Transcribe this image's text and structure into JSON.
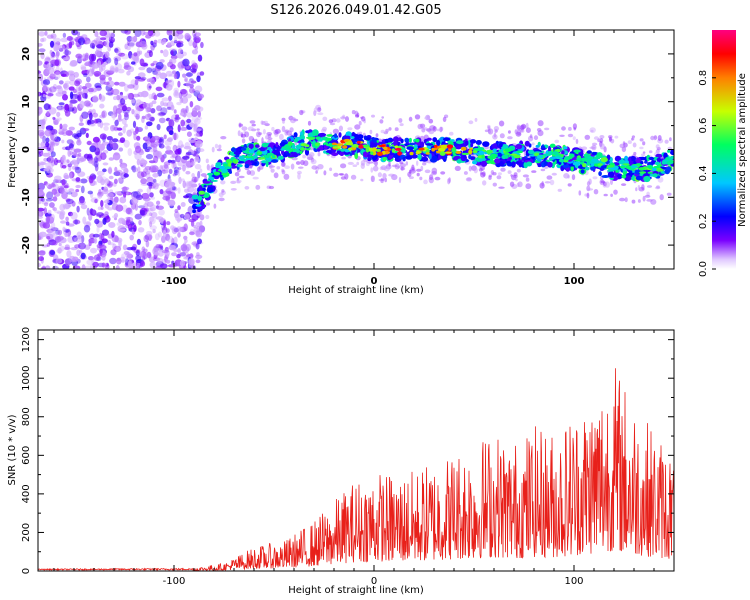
{
  "title": "S126.2026.049.01.42.G05",
  "colors": {
    "snr_line": "#e8201a",
    "spectrogram_low": "#e7d3fb",
    "spectrogram_mid": "#7a00ff",
    "colorbar": [
      "#ffffff",
      "#e0c8ff",
      "#7a00ff",
      "#0000ff",
      "#00c8ff",
      "#00ff60",
      "#c8ff00",
      "#ff8000",
      "#ff0000",
      "#ff0080"
    ]
  },
  "chart_data": [
    {
      "type": "heatmap",
      "name": "spectrogram",
      "xlabel": "Height of straight line (km)",
      "ylabel": "Frequency (Hz)",
      "xlim": [
        -168,
        150
      ],
      "ylim": [
        -25,
        25
      ],
      "xticks": [
        "-100",
        "0",
        "100"
      ],
      "yticks": [
        "-20",
        "-10",
        "0",
        "10",
        "20"
      ],
      "ridge": {
        "description_points_x": [
          -88,
          -80,
          -70,
          -60,
          -50,
          -40,
          -30,
          -20,
          -10,
          0,
          20,
          40,
          60,
          80,
          100,
          120,
          140,
          150
        ],
        "description_points_y": [
          -11,
          -6,
          -2,
          -1,
          -1,
          1,
          2,
          1,
          1,
          0,
          0,
          0,
          -1,
          -1,
          -2,
          -4,
          -4,
          -2
        ]
      },
      "colorbar": {
        "label": "Normalized spectral amplitude",
        "range": [
          0,
          1
        ],
        "ticks": [
          "0.0",
          "0.2",
          "0.4",
          "0.6",
          "0.8"
        ]
      }
    },
    {
      "type": "line",
      "name": "snr",
      "xlabel": "Height of straight line (km)",
      "ylabel": "SNR (10 * v/v)",
      "xlim": [
        -168,
        150
      ],
      "ylim": [
        0,
        1250
      ],
      "xticks": [
        "-100",
        "0",
        "100"
      ],
      "yticks": [
        "0",
        "200",
        "400",
        "600",
        "800",
        "1000",
        "1200"
      ],
      "envelope": {
        "x": [
          -168,
          -90,
          -75,
          -60,
          -45,
          -30,
          -20,
          -10,
          0,
          10,
          20,
          30,
          40,
          50,
          60,
          70,
          80,
          90,
          100,
          110,
          120,
          130,
          140,
          150
        ],
        "y": [
          10,
          15,
          40,
          120,
          150,
          250,
          350,
          450,
          500,
          480,
          500,
          550,
          600,
          650,
          700,
          650,
          720,
          700,
          800,
          900,
          1050,
          850,
          700,
          600
        ]
      }
    }
  ]
}
